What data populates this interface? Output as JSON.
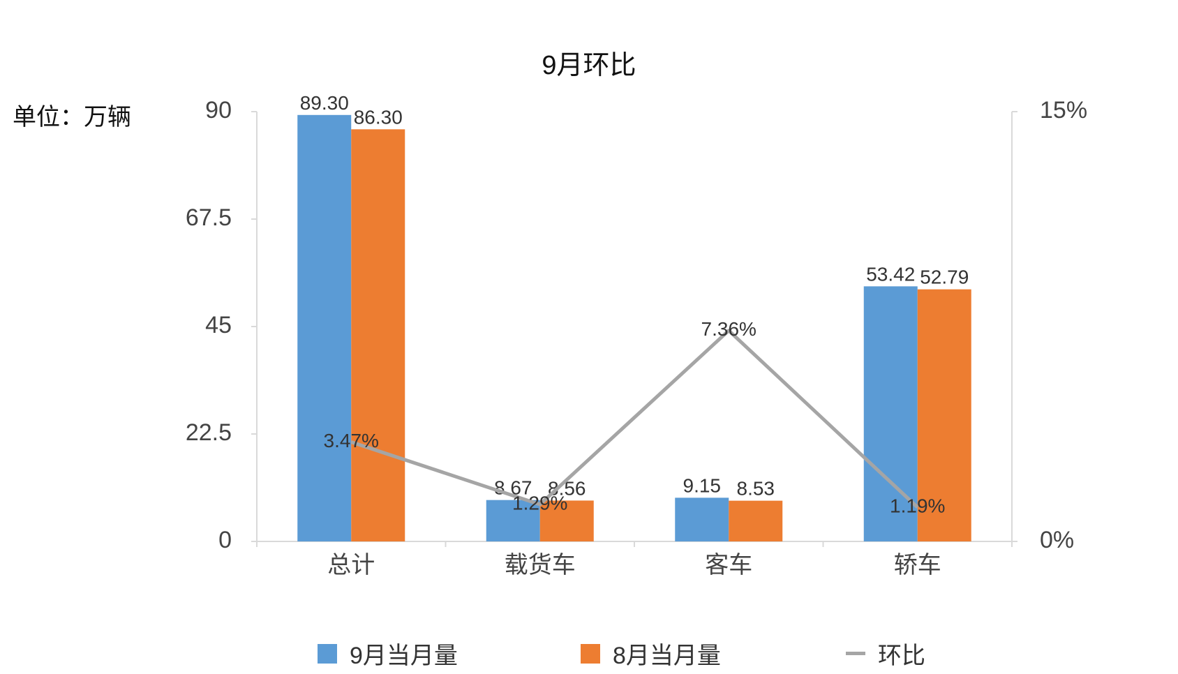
{
  "chart_data": {
    "type": "bar",
    "title": "9月环比",
    "unit_label": "单位：万辆",
    "categories": [
      "总计",
      "载货车",
      "客车",
      "轿车"
    ],
    "series": [
      {
        "name": "9月当月量",
        "type": "bar",
        "axis": "left",
        "color": "#5b9bd5",
        "values": [
          89.3,
          8.67,
          9.15,
          53.42
        ],
        "labels": [
          "89.30",
          "8.67",
          "9.15",
          "53.42"
        ]
      },
      {
        "name": "8月当月量",
        "type": "bar",
        "axis": "left",
        "color": "#ed7d31",
        "values": [
          86.3,
          8.56,
          8.53,
          52.79
        ],
        "labels": [
          "86.30",
          "8.56",
          "8.53",
          "52.79"
        ]
      },
      {
        "name": "环比",
        "type": "line",
        "axis": "right",
        "color": "#a5a5a5",
        "values": [
          3.47,
          1.29,
          7.36,
          1.19
        ],
        "labels": [
          "3.47%",
          "1.29%",
          "7.36%",
          "1.19%"
        ]
      }
    ],
    "y_left": {
      "min": 0,
      "max": 90,
      "ticks": [
        0,
        22.5,
        45,
        67.5,
        90
      ],
      "tick_labels": [
        "0",
        "22.5",
        "45",
        "67.5",
        "90"
      ]
    },
    "y_right": {
      "min": 0,
      "max": 15,
      "ticks": [
        0,
        15
      ],
      "tick_labels": [
        "0%",
        "15%"
      ]
    },
    "grid": false,
    "legend_position": "bottom"
  }
}
